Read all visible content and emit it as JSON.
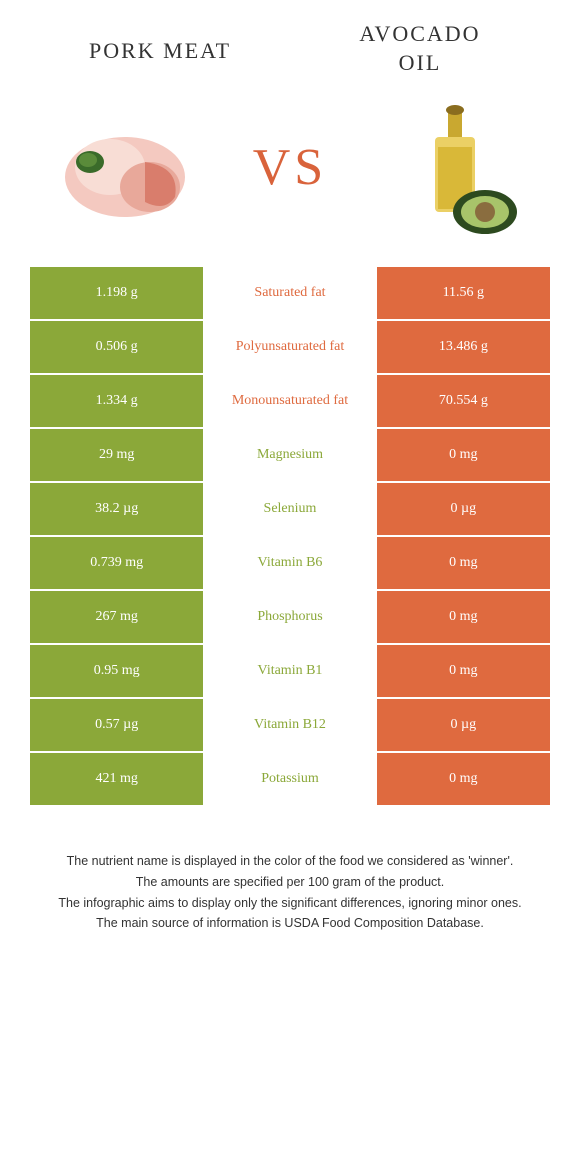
{
  "header": {
    "left_title": "PORK MEAT",
    "right_title_line1": "AVOCADO",
    "right_title_line2": "OIL",
    "vs": "VS"
  },
  "colors": {
    "green": "#8ba839",
    "orange": "#df6a3f",
    "green_text": "#8ba839",
    "orange_text": "#df6a3f",
    "white": "#ffffff"
  },
  "rows": [
    {
      "left": "1.198 g",
      "mid": "Saturated fat",
      "right": "11.56 g",
      "winner": "right"
    },
    {
      "left": "0.506 g",
      "mid": "Polyunsaturated fat",
      "right": "13.486 g",
      "winner": "right"
    },
    {
      "left": "1.334 g",
      "mid": "Monounsaturated fat",
      "right": "70.554 g",
      "winner": "right"
    },
    {
      "left": "29 mg",
      "mid": "Magnesium",
      "right": "0 mg",
      "winner": "left"
    },
    {
      "left": "38.2 µg",
      "mid": "Selenium",
      "right": "0 µg",
      "winner": "left"
    },
    {
      "left": "0.739 mg",
      "mid": "Vitamin B6",
      "right": "0 mg",
      "winner": "left"
    },
    {
      "left": "267 mg",
      "mid": "Phosphorus",
      "right": "0 mg",
      "winner": "left"
    },
    {
      "left": "0.95 mg",
      "mid": "Vitamin B1",
      "right": "0 mg",
      "winner": "left"
    },
    {
      "left": "0.57 µg",
      "mid": "Vitamin B12",
      "right": "0 µg",
      "winner": "left"
    },
    {
      "left": "421 mg",
      "mid": "Potassium",
      "right": "0 mg",
      "winner": "left"
    }
  ],
  "footnotes": {
    "line1": "The nutrient name is displayed in the color of the food we considered as 'winner'.",
    "line2": "The amounts are specified per 100 gram of the product.",
    "line3": "The infographic aims to display only the significant differences, ignoring minor ones.",
    "line4": "The main source of information is USDA Food Composition Database."
  }
}
